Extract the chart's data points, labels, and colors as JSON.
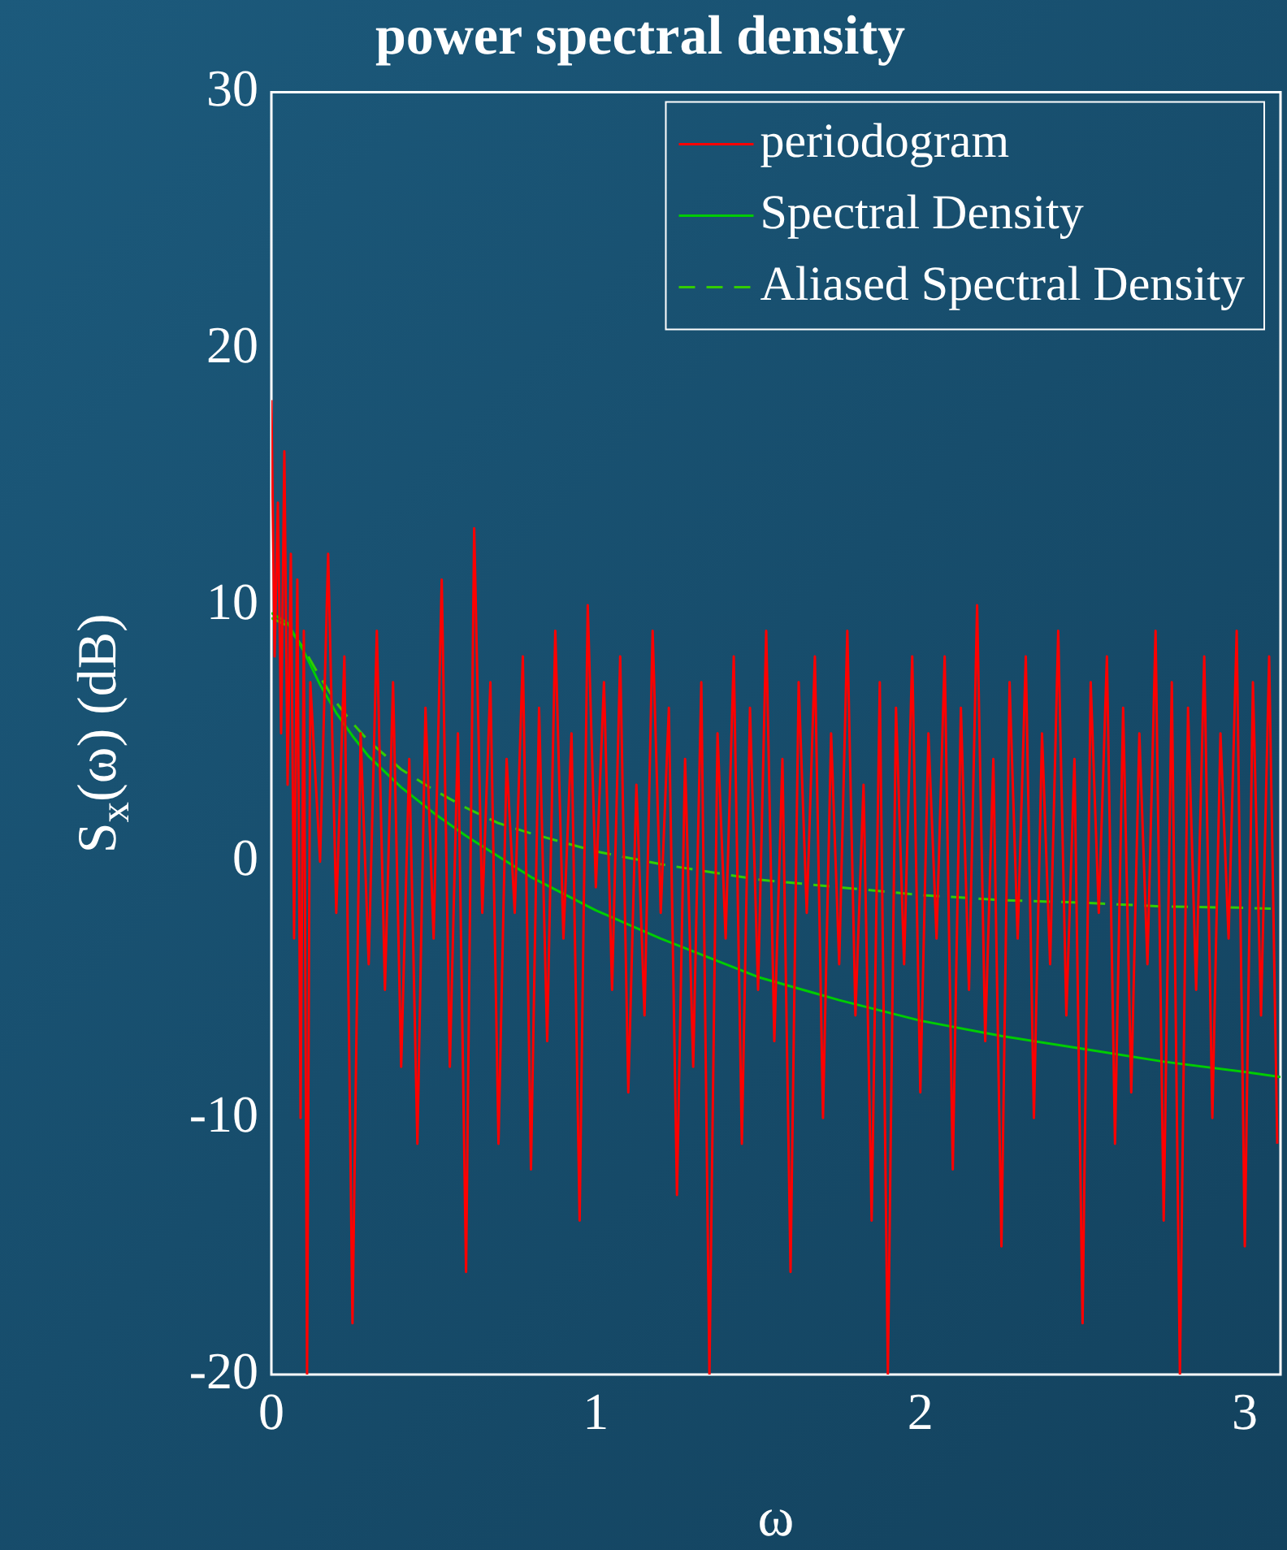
{
  "chart_data": {
    "type": "line",
    "title": "power spectral density",
    "xlabel": "ω",
    "ylabel": "S$_{x}$(ω) (dB)",
    "xlim": [
      0,
      3.11
    ],
    "xticks": [
      0,
      1,
      2,
      3
    ],
    "ylim": [
      -20,
      30
    ],
    "yticks": [
      -20,
      -10,
      0,
      10,
      20,
      30
    ],
    "legend": "top right",
    "marker": "none",
    "series": [
      {
        "name": "periodogram",
        "color": "#ff0000",
        "line_style": "solid",
        "x": [
          0,
          0.01,
          0.02,
          0.03,
          0.04,
          0.05,
          0.06,
          0.07,
          0.08,
          0.09,
          0.1,
          0.11,
          0.12,
          0.15,
          0.175,
          0.2,
          0.225,
          0.25,
          0.275,
          0.3,
          0.325,
          0.35,
          0.375,
          0.4,
          0.425,
          0.45,
          0.475,
          0.5,
          0.525,
          0.55,
          0.575,
          0.6,
          0.625,
          0.65,
          0.675,
          0.7,
          0.725,
          0.75,
          0.775,
          0.8,
          0.825,
          0.85,
          0.875,
          0.9,
          0.925,
          0.95,
          0.975,
          1,
          1.025,
          1.05,
          1.075,
          1.1,
          1.125,
          1.15,
          1.175,
          1.2,
          1.225,
          1.25,
          1.275,
          1.3,
          1.325,
          1.35,
          1.375,
          1.4,
          1.425,
          1.45,
          1.475,
          1.5,
          1.525,
          1.55,
          1.575,
          1.6,
          1.625,
          1.65,
          1.675,
          1.7,
          1.725,
          1.75,
          1.775,
          1.8,
          1.825,
          1.85,
          1.875,
          1.9,
          1.925,
          1.95,
          1.975,
          2,
          2.025,
          2.05,
          2.075,
          2.1,
          2.125,
          2.15,
          2.175,
          2.2,
          2.225,
          2.25,
          2.275,
          2.3,
          2.325,
          2.35,
          2.375,
          2.4,
          2.425,
          2.45,
          2.475,
          2.5,
          2.525,
          2.55,
          2.575,
          2.6,
          2.625,
          2.65,
          2.675,
          2.7,
          2.725,
          2.75,
          2.775,
          2.8,
          2.825,
          2.85,
          2.875,
          2.9,
          2.925,
          2.95,
          2.975,
          3,
          3.025,
          3.05,
          3.075,
          3.1
        ],
        "values": [
          18,
          8,
          14,
          5,
          16,
          3,
          12,
          -3,
          11,
          -10,
          9,
          -20,
          7,
          0,
          12,
          -2,
          8,
          -18,
          5,
          -4,
          9,
          -5,
          7,
          -8,
          4,
          -11,
          6,
          -3,
          11,
          -8,
          5,
          -16,
          13,
          -2,
          7,
          -11,
          4,
          -2,
          8,
          -12,
          6,
          -7,
          9,
          -3,
          5,
          -14,
          10,
          -1,
          7,
          -5,
          8,
          -9,
          3,
          -6,
          9,
          -2,
          6,
          -13,
          4,
          -8,
          7,
          -20,
          5,
          -3,
          8,
          -11,
          6,
          -5,
          9,
          -7,
          4,
          -16,
          7,
          -2,
          8,
          -10,
          5,
          -4,
          9,
          -6,
          3,
          -14,
          7,
          -20,
          6,
          -4,
          8,
          -9,
          5,
          -3,
          8,
          -12,
          6,
          -5,
          10,
          -7,
          4,
          -15,
          7,
          -3,
          8,
          -10,
          5,
          -4,
          9,
          -6,
          4,
          -18,
          7,
          -2,
          8,
          -11,
          6,
          -9,
          5,
          -4,
          9,
          -14,
          7,
          -20,
          6,
          -5,
          8,
          -10,
          5,
          -3,
          9,
          -15,
          7,
          -6,
          8,
          -11
        ]
      },
      {
        "name": "Spectral Density",
        "color": "#00cc00",
        "line_style": "solid",
        "x": [
          0,
          0.05,
          0.1,
          0.15,
          0.2,
          0.25,
          0.3,
          0.4,
          0.5,
          0.6,
          0.7,
          0.8,
          1,
          1.2,
          1.5,
          1.75,
          2,
          2.25,
          2.5,
          2.75,
          3,
          3.11
        ],
        "values": [
          9.7,
          9.3,
          8.2,
          6.9,
          5.8,
          4.9,
          4.1,
          2.9,
          1.9,
          1.0,
          0.2,
          -0.6,
          -1.9,
          -3.0,
          -4.5,
          -5.4,
          -6.2,
          -6.8,
          -7.3,
          -7.8,
          -8.2,
          -8.4
        ]
      },
      {
        "name": "Aliased Spectral Density",
        "color": "#33cc00",
        "line_style": "dashed",
        "x": [
          0,
          0.05,
          0.1,
          0.15,
          0.2,
          0.25,
          0.3,
          0.4,
          0.5,
          0.6,
          0.7,
          0.8,
          1,
          1.2,
          1.5,
          1.75,
          2,
          2.25,
          2.5,
          2.75,
          3,
          3.11
        ],
        "values": [
          9.5,
          9.2,
          8.3,
          7.2,
          6.2,
          5.4,
          4.7,
          3.6,
          2.8,
          2.1,
          1.5,
          1.1,
          0.4,
          -0.1,
          -0.7,
          -1.0,
          -1.3,
          -1.5,
          -1.6,
          -1.75,
          -1.8,
          -1.85
        ]
      }
    ]
  }
}
